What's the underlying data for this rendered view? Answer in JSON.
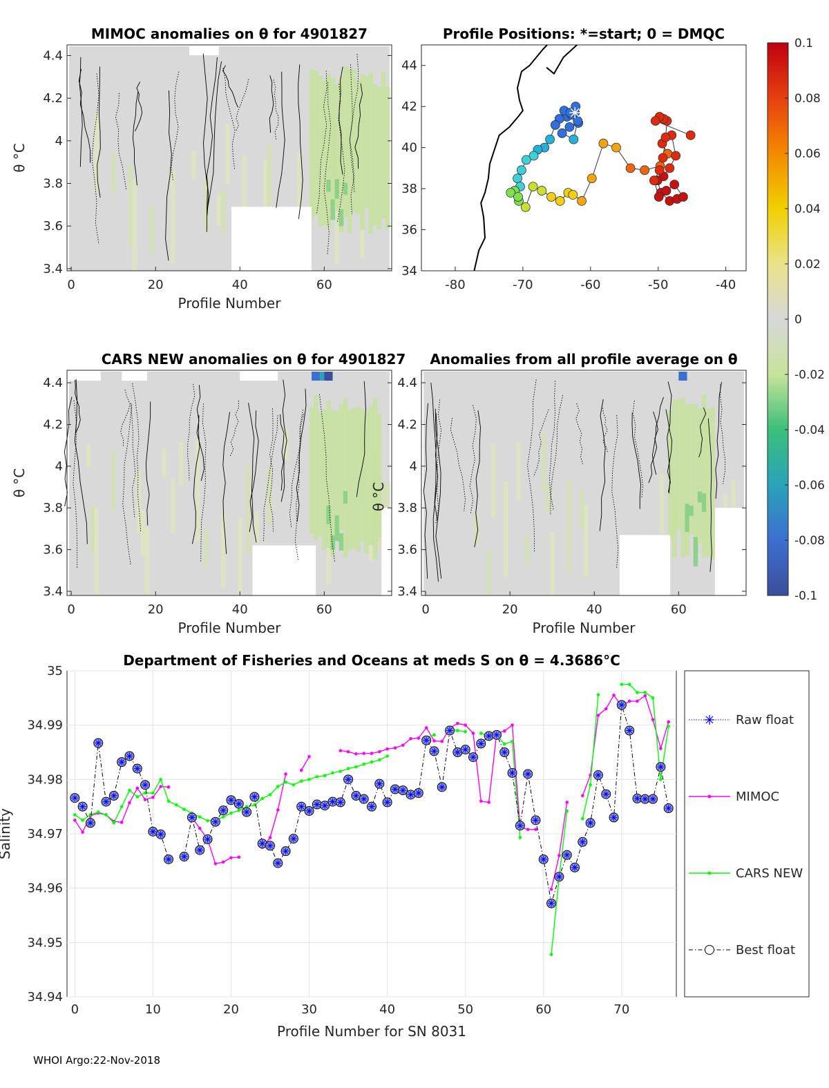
{
  "figure": {
    "footer": "WHOI Argo:22-Nov-2018"
  },
  "chart_data": [
    {
      "id": "mimoc",
      "type": "heatmap",
      "title": "MIMOC anomalies on θ  for 4901827",
      "xlabel": "Profile Number",
      "ylabel": "θ °C",
      "xlim": [
        -1,
        76
      ],
      "ylim": [
        3.39,
        4.45
      ],
      "xticks": [
        "0",
        "20",
        "40",
        "60"
      ],
      "xtick_values": [
        0,
        20,
        40,
        60
      ],
      "yticks": [
        "3.4",
        "3.6",
        "3.8",
        "4",
        "4.2",
        "4.4"
      ],
      "ytick_values": [
        3.4,
        3.6,
        3.8,
        4.0,
        4.2,
        4.4
      ],
      "green_band_profiles": [
        57,
        75
      ],
      "deep_cutoff_theta": 3.69
    },
    {
      "id": "positions",
      "type": "scatter",
      "title": "Profile Positions: *=start; 0 = DMQC",
      "xlim": [
        -85,
        -37
      ],
      "ylim": [
        34,
        45
      ],
      "xticks": [
        "-80",
        "-70",
        "-60",
        "-50",
        "-40"
      ],
      "xtick_values": [
        -80,
        -70,
        -60,
        -50,
        -40
      ],
      "yticks": [
        "34",
        "36",
        "38",
        "40",
        "42",
        "44"
      ],
      "ytick_values": [
        34,
        36,
        38,
        40,
        42,
        44
      ],
      "start": [
        -62.3,
        41.7
      ],
      "lon": [
        -62.3,
        -63.5,
        -62.8,
        -63.9,
        -62.2,
        -61.8,
        -63.1,
        -64.2,
        -62.5,
        -61.9,
        -63.0,
        -64.6,
        -65.2,
        -66.0,
        -66.8,
        -67.8,
        -68.4,
        -69.5,
        -70.2,
        -70.8,
        -70.4,
        -71.2,
        -70.6,
        -71.8,
        -70.7,
        -69.6,
        -68.5,
        -67.2,
        -65.8,
        -64.5,
        -63.3,
        -62.6,
        -61.3,
        -59.8,
        -58.1,
        -56.2,
        -54.1,
        -52.0,
        -49.7,
        -48.6,
        -49.4,
        -48.0,
        -47.4,
        -48.3,
        -49.2,
        -50.1,
        -49.6,
        -48.3,
        -47.2,
        -46.3,
        -47.6,
        -48.8,
        -49.9,
        -50.6,
        -49.8,
        -49.3,
        -48.9,
        -48.7,
        -49.2,
        -49.8,
        -50.4,
        -45.2
      ],
      "lat": [
        41.7,
        41.5,
        41.6,
        41.8,
        42.0,
        41.2,
        41.0,
        40.7,
        40.4,
        41.3,
        41.7,
        41.4,
        41.1,
        40.4,
        40.0,
        39.9,
        39.6,
        39.4,
        38.9,
        38.5,
        38.1,
        37.9,
        37.4,
        37.8,
        37.6,
        37.1,
        38.1,
        37.9,
        37.6,
        37.4,
        37.8,
        37.7,
        37.4,
        38.5,
        40.2,
        40.0,
        39.0,
        38.9,
        39.1,
        39.7,
        40.2,
        40.6,
        39.6,
        39.0,
        38.6,
        38.4,
        37.8,
        37.4,
        37.5,
        37.6,
        38.2,
        37.9,
        37.6,
        38.4,
        38.9,
        39.5,
        40.5,
        41.3,
        41.4,
        41.5,
        41.3,
        40.6
      ],
      "color_value": [
        -0.09,
        -0.085,
        -0.08,
        -0.085,
        -0.09,
        -0.08,
        -0.078,
        -0.075,
        -0.07,
        -0.082,
        -0.085,
        -0.078,
        -0.072,
        -0.065,
        -0.058,
        -0.055,
        -0.05,
        -0.05,
        -0.045,
        -0.04,
        -0.035,
        -0.03,
        -0.025,
        -0.02,
        -0.015,
        -0.01,
        0.0,
        0.005,
        0.012,
        0.018,
        0.022,
        0.028,
        0.032,
        0.035,
        0.04,
        0.045,
        0.05,
        0.055,
        0.06,
        0.065,
        0.07,
        0.075,
        0.08,
        0.085,
        0.09,
        0.095,
        0.1,
        0.1,
        0.098,
        0.096,
        0.094,
        0.092,
        0.09,
        0.088,
        0.086,
        0.084,
        0.082,
        0.08,
        0.078,
        0.076,
        0.074,
        0.072
      ]
    },
    {
      "id": "colorbar",
      "type": "heatmap",
      "ticks": [
        "0.1",
        "0.08",
        "0.06",
        "0.04",
        "0.02",
        "0",
        "-0.02",
        "-0.04",
        "-0.06",
        "-0.08",
        "-0.1"
      ],
      "tick_values": [
        0.1,
        0.08,
        0.06,
        0.04,
        0.02,
        0,
        -0.02,
        -0.04,
        -0.06,
        -0.08,
        -0.1
      ],
      "range": [
        -0.1,
        0.1
      ]
    },
    {
      "id": "cars",
      "type": "heatmap",
      "title": "CARS NEW anomalies on θ for 4901827",
      "xlabel": "Profile Number",
      "ylabel": "θ °C",
      "inner_label": "θ °C",
      "xlim": [
        -1,
        76
      ],
      "ylim": [
        3.38,
        4.46
      ],
      "xticks": [
        "0",
        "20",
        "40",
        "60"
      ],
      "xtick_values": [
        0,
        20,
        40,
        60
      ],
      "yticks": [
        "3.4",
        "3.6",
        "3.8",
        "4",
        "4.2",
        "4.4"
      ],
      "ytick_values": [
        3.4,
        3.6,
        3.8,
        4.0,
        4.2,
        4.4
      ],
      "green_band_profiles": [
        57,
        73
      ],
      "deep_cutoff_theta": 3.62
    },
    {
      "id": "allavg",
      "type": "heatmap",
      "title": "Anomalies from all profile average on θ",
      "xlabel": "Profile Number",
      "xlim": [
        -1,
        76
      ],
      "ylim": [
        3.38,
        4.46
      ],
      "xticks": [
        "0",
        "20",
        "40",
        "60"
      ],
      "xtick_values": [
        0,
        20,
        40,
        60
      ],
      "yticks": [
        "3.4",
        "3.6",
        "3.8",
        "4",
        "4.2",
        "4.4"
      ],
      "ytick_values": [
        3.4,
        3.6,
        3.8,
        4.0,
        4.2,
        4.4
      ],
      "green_band_profiles": [
        58,
        68
      ],
      "deep_cutoff_theta": 3.67
    },
    {
      "id": "salinity",
      "type": "line",
      "title": "Department of Fisheries and Oceans at meds S on θ = 4.3686°C",
      "xlabel": "Profile Number for SN 8031",
      "ylabel": "Salinity",
      "xlim": [
        -1,
        77
      ],
      "ylim": [
        34.94,
        35.0
      ],
      "xticks": [
        "0",
        "10",
        "20",
        "30",
        "40",
        "50",
        "60",
        "70"
      ],
      "xtick_values": [
        0,
        10,
        20,
        30,
        40,
        50,
        60,
        70
      ],
      "yticks": [
        "34.94",
        "34.95",
        "34.96",
        "34.97",
        "34.98",
        "34.99",
        "35"
      ],
      "ytick_values": [
        34.94,
        34.95,
        34.96,
        34.97,
        34.98,
        34.99,
        35.0
      ],
      "x": [
        0,
        1,
        2,
        3,
        4,
        5,
        6,
        7,
        8,
        9,
        10,
        11,
        12,
        13,
        14,
        15,
        16,
        17,
        18,
        19,
        20,
        21,
        22,
        23,
        24,
        25,
        26,
        27,
        28,
        29,
        30,
        31,
        32,
        33,
        34,
        35,
        36,
        37,
        38,
        39,
        40,
        41,
        42,
        43,
        44,
        45,
        46,
        47,
        48,
        49,
        50,
        51,
        52,
        53,
        54,
        55,
        56,
        57,
        58,
        59,
        60,
        61,
        62,
        63,
        64,
        65,
        66,
        67,
        68,
        69,
        70,
        71,
        72,
        73,
        74,
        75,
        76
      ],
      "series": [
        {
          "name": "Raw float",
          "color": "#0000ff",
          "values": [
            34.9766,
            34.975,
            34.972,
            34.9867,
            34.9759,
            34.977,
            34.9832,
            34.9843,
            34.982,
            34.979,
            34.9704,
            34.9699,
            34.9653,
            null,
            34.9658,
            34.973,
            34.967,
            34.969,
            34.9722,
            34.9743,
            34.9762,
            34.9755,
            34.974,
            34.9768,
            34.9682,
            34.9678,
            34.9646,
            34.9668,
            34.9691,
            34.975,
            34.9742,
            34.9754,
            34.9752,
            34.9759,
            34.9758,
            34.98,
            34.977,
            34.9764,
            34.975,
            34.9792,
            34.9758,
            34.9782,
            34.978,
            34.9772,
            34.9775,
            34.9872,
            34.9852,
            34.9786,
            34.989,
            34.985,
            34.9855,
            34.9841,
            34.9866,
            34.988,
            34.9882,
            34.985,
            34.9812,
            34.9715,
            34.981,
            34.9725,
            34.9653,
            34.9572,
            34.9621,
            34.9661,
            34.9638,
            34.9685,
            34.972,
            34.9808,
            34.9773,
            34.973,
            34.9937,
            34.989,
            34.9765,
            34.9764,
            34.9764,
            34.9823,
            34.9747
          ]
        },
        {
          "name": "MIMOC",
          "color": "#ff00ff",
          "values": [
            34.9725,
            34.9703,
            34.9733,
            34.9738,
            34.9735,
            34.9723,
            34.9721,
            34.9757,
            34.9784,
            34.9763,
            34.9767,
            34.9787,
            34.9786,
            null,
            null,
            34.973,
            34.971,
            34.969,
            34.9645,
            34.9648,
            34.9656,
            34.9657,
            null,
            null,
            34.9675,
            34.9693,
            34.9744,
            34.981,
            null,
            34.9817,
            34.9842,
            null,
            null,
            null,
            34.9853,
            34.9851,
            34.9847,
            34.9848,
            34.9848,
            34.9851,
            34.9856,
            34.9858,
            34.9863,
            34.9875,
            34.9876,
            34.9895,
            34.9871,
            34.987,
            34.9895,
            34.9903,
            34.99,
            34.9885,
            34.976,
            34.9758,
            34.9885,
            34.9889,
            34.99,
            34.9712,
            34.9708,
            34.9708,
            null,
            34.9598,
            34.966,
            34.9758,
            null,
            34.977,
            34.9808,
            34.9918,
            34.993,
            34.9955,
            34.9935,
            34.9944,
            34.9944,
            34.9954,
            34.991,
            34.9857,
            34.9906
          ]
        },
        {
          "name": "CARS NEW",
          "color": "#00ff00",
          "values": [
            34.9735,
            34.9725,
            34.9735,
            34.974,
            34.9735,
            34.972,
            34.975,
            34.978,
            34.9768,
            34.9775,
            34.9775,
            34.98,
            34.976,
            34.9753,
            34.9745,
            34.9738,
            34.9731,
            34.9724,
            34.9725,
            34.9731,
            34.9738,
            34.9743,
            34.975,
            34.9753,
            34.9765,
            34.9772,
            34.9787,
            34.9795,
            34.979,
            34.9797,
            34.98,
            34.9805,
            34.9807,
            34.9812,
            34.9815,
            34.982,
            34.9823,
            34.9828,
            34.9832,
            34.9836,
            34.9843,
            null,
            null,
            null,
            null,
            34.9877,
            34.9882,
            null,
            34.9891,
            34.989,
            34.9888,
            null,
            34.9885,
            34.988,
            34.9882,
            34.9865,
            34.987,
            34.9693,
            null,
            null,
            null,
            34.9478,
            34.962,
            34.9742,
            null,
            34.9728,
            34.979,
            34.9956,
            null,
            null,
            34.9975,
            34.9975,
            34.996,
            34.996,
            34.995,
            34.98,
            34.9898
          ]
        },
        {
          "name": "Best float",
          "color": "#000000",
          "values": [
            34.9766,
            34.975,
            34.972,
            34.9867,
            34.9759,
            34.977,
            34.9832,
            34.9843,
            34.982,
            34.979,
            34.9704,
            34.9699,
            34.9653,
            null,
            34.9658,
            34.973,
            34.967,
            34.969,
            34.9722,
            34.9743,
            34.9762,
            34.9755,
            34.974,
            34.9768,
            34.9682,
            34.9678,
            34.9646,
            34.9668,
            34.9691,
            34.975,
            34.9742,
            34.9754,
            34.9752,
            34.9759,
            34.9758,
            34.98,
            34.977,
            34.9764,
            34.975,
            34.9792,
            34.9758,
            34.9782,
            34.978,
            34.9772,
            34.9775,
            34.9872,
            34.9852,
            34.9786,
            34.989,
            34.985,
            34.9855,
            34.9841,
            34.9866,
            34.988,
            34.9882,
            34.985,
            34.9812,
            34.9715,
            34.981,
            34.9725,
            34.9653,
            34.9572,
            34.9621,
            34.9661,
            34.9638,
            34.9685,
            34.972,
            34.9808,
            34.9773,
            34.973,
            34.9937,
            34.989,
            34.9765,
            34.9764,
            34.9764,
            34.9823,
            34.9747
          ]
        }
      ],
      "legend": [
        "Raw float",
        "MIMOC",
        "CARS NEW",
        "Best float"
      ]
    }
  ]
}
